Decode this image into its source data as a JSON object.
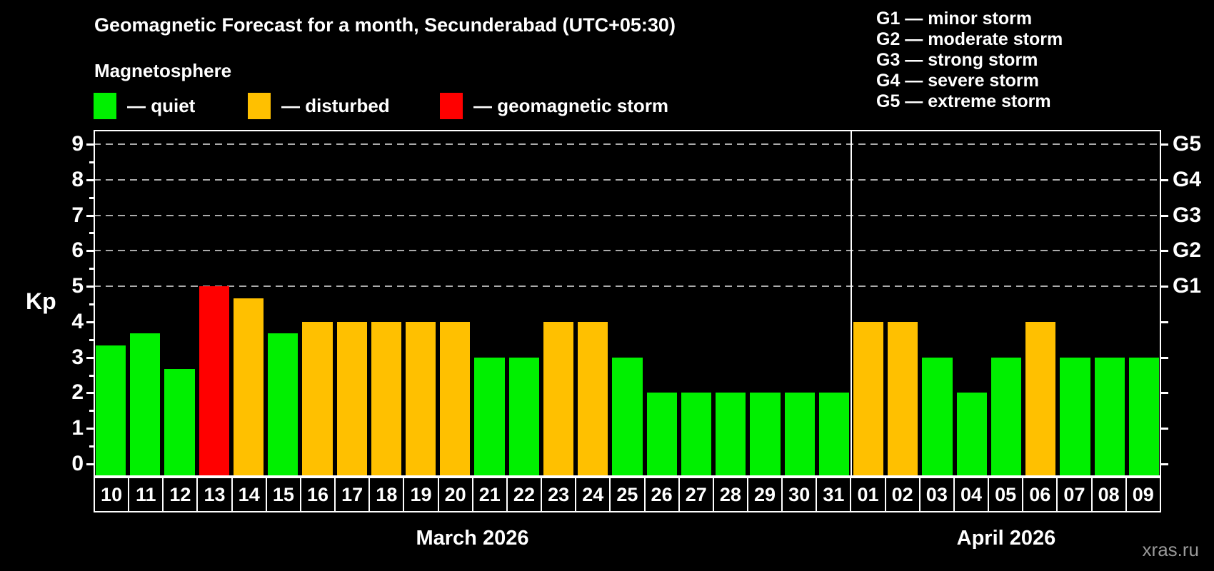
{
  "title": "Geomagnetic Forecast for a month, Secunderabad (UTC+05:30)",
  "subtitle": "Magnetosphere",
  "legend": [
    {
      "status": "quiet",
      "label": "— quiet",
      "color": "#00f000"
    },
    {
      "status": "disturbed",
      "label": "— disturbed",
      "color": "#ffc000"
    },
    {
      "status": "storm",
      "label": "— geomagnetic storm",
      "color": "#ff0000"
    }
  ],
  "g_legend": [
    "G1 — minor storm",
    "G2 — moderate storm",
    "G3 — strong storm",
    "G4 — severe storm",
    "G5 — extreme storm"
  ],
  "watermark": "xras.ru",
  "chart_data": {
    "type": "bar",
    "ylabel": "Kp",
    "ylim": [
      -0.36,
      9.4
    ],
    "yticks": [
      0,
      1,
      2,
      3,
      4,
      5,
      6,
      7,
      8,
      9
    ],
    "gridlines_at": [
      5,
      6,
      7,
      8,
      9
    ],
    "grid_color": "#ababab",
    "right_axis_labels": [
      {
        "label": "G1",
        "kp": 5
      },
      {
        "label": "G2",
        "kp": 6
      },
      {
        "label": "G3",
        "kp": 7
      },
      {
        "label": "G4",
        "kp": 8
      },
      {
        "label": "G5",
        "kp": 9
      }
    ],
    "status_colors": {
      "quiet": "#00f000",
      "disturbed": "#ffc000",
      "storm": "#ff0000"
    },
    "months": [
      {
        "label": "March 2026",
        "days": [
          {
            "day": "10",
            "kp": 3.33,
            "status": "quiet"
          },
          {
            "day": "11",
            "kp": 3.67,
            "status": "quiet"
          },
          {
            "day": "12",
            "kp": 2.67,
            "status": "quiet"
          },
          {
            "day": "13",
            "kp": 5.0,
            "status": "storm"
          },
          {
            "day": "14",
            "kp": 4.67,
            "status": "disturbed"
          },
          {
            "day": "15",
            "kp": 3.67,
            "status": "quiet"
          },
          {
            "day": "16",
            "kp": 4.0,
            "status": "disturbed"
          },
          {
            "day": "17",
            "kp": 4.0,
            "status": "disturbed"
          },
          {
            "day": "18",
            "kp": 4.0,
            "status": "disturbed"
          },
          {
            "day": "19",
            "kp": 4.0,
            "status": "disturbed"
          },
          {
            "day": "20",
            "kp": 4.0,
            "status": "disturbed"
          },
          {
            "day": "21",
            "kp": 3.0,
            "status": "quiet"
          },
          {
            "day": "22",
            "kp": 3.0,
            "status": "quiet"
          },
          {
            "day": "23",
            "kp": 4.0,
            "status": "disturbed"
          },
          {
            "day": "24",
            "kp": 4.0,
            "status": "disturbed"
          },
          {
            "day": "25",
            "kp": 3.0,
            "status": "quiet"
          },
          {
            "day": "26",
            "kp": 2.0,
            "status": "quiet"
          },
          {
            "day": "27",
            "kp": 2.0,
            "status": "quiet"
          },
          {
            "day": "28",
            "kp": 2.0,
            "status": "quiet"
          },
          {
            "day": "29",
            "kp": 2.0,
            "status": "quiet"
          },
          {
            "day": "30",
            "kp": 2.0,
            "status": "quiet"
          },
          {
            "day": "31",
            "kp": 2.0,
            "status": "quiet"
          }
        ]
      },
      {
        "label": "April 2026",
        "days": [
          {
            "day": "01",
            "kp": 4.0,
            "status": "disturbed"
          },
          {
            "day": "02",
            "kp": 4.0,
            "status": "disturbed"
          },
          {
            "day": "03",
            "kp": 3.0,
            "status": "quiet"
          },
          {
            "day": "04",
            "kp": 2.0,
            "status": "quiet"
          },
          {
            "day": "05",
            "kp": 3.0,
            "status": "quiet"
          },
          {
            "day": "06",
            "kp": 4.0,
            "status": "disturbed"
          },
          {
            "day": "07",
            "kp": 3.0,
            "status": "quiet"
          },
          {
            "day": "08",
            "kp": 3.0,
            "status": "quiet"
          },
          {
            "day": "09",
            "kp": 3.0,
            "status": "quiet"
          }
        ]
      }
    ]
  }
}
